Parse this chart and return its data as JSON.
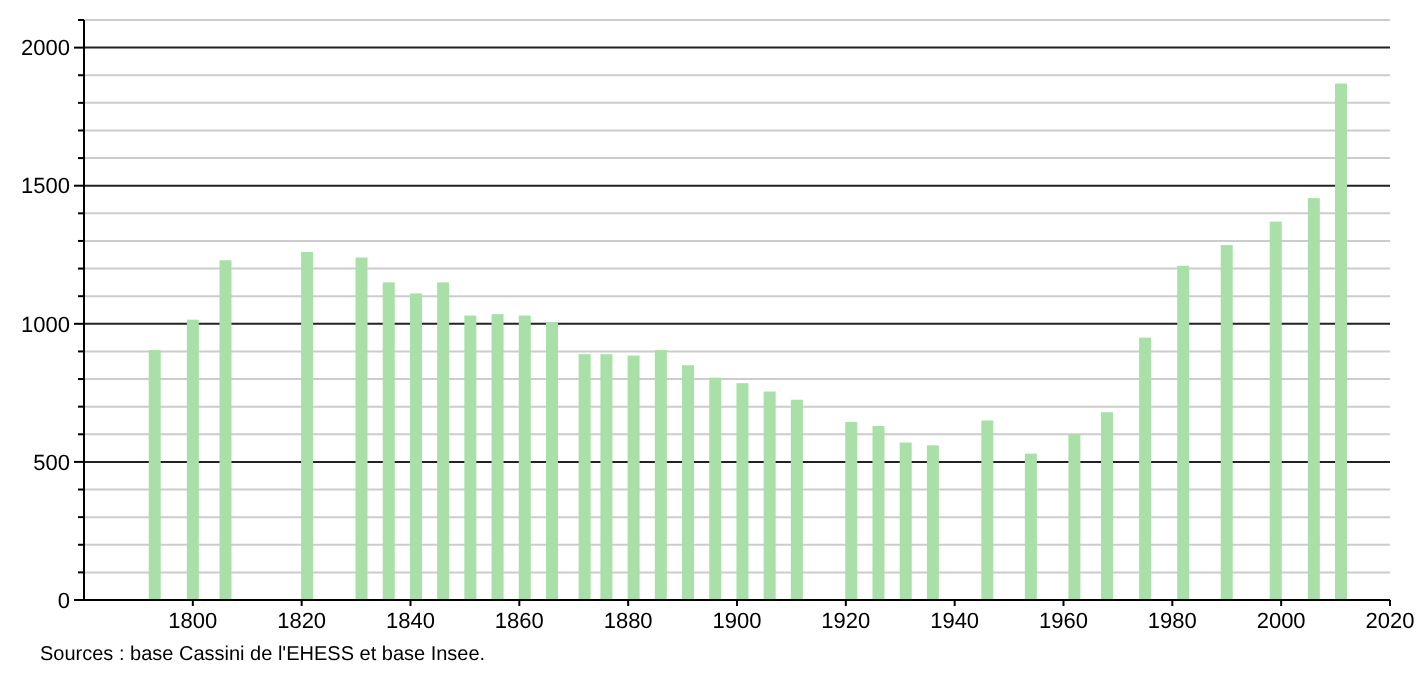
{
  "chart_data": {
    "type": "bar",
    "x": [
      1793,
      1800,
      1806,
      1821,
      1831,
      1836,
      1841,
      1846,
      1851,
      1856,
      1861,
      1866,
      1872,
      1876,
      1881,
      1886,
      1891,
      1896,
      1901,
      1906,
      1911,
      1921,
      1926,
      1931,
      1936,
      1946,
      1954,
      1962,
      1968,
      1975,
      1982,
      1990,
      1999,
      2006,
      2011
    ],
    "values": [
      905,
      1015,
      1230,
      1260,
      1240,
      1150,
      1110,
      1150,
      1030,
      1035,
      1030,
      1005,
      890,
      890,
      885,
      905,
      850,
      805,
      785,
      755,
      725,
      645,
      630,
      570,
      560,
      650,
      530,
      600,
      680,
      950,
      1210,
      1285,
      1370,
      1455,
      1870
    ],
    "color": "#a8e0a8",
    "xlim": [
      1780,
      2020
    ],
    "xticks": [
      1800,
      1820,
      1840,
      1860,
      1880,
      1900,
      1920,
      1940,
      1960,
      1980,
      2000,
      2020
    ],
    "ylim": [
      0,
      2100
    ],
    "yticks": [
      0,
      {
        "value": 100,
        "label": null
      },
      {
        "value": 200,
        "label": null
      },
      {
        "value": 300,
        "label": null
      },
      {
        "value": 400,
        "label": null
      },
      500,
      {
        "value": 600,
        "label": null
      },
      {
        "value": 700,
        "label": null
      },
      {
        "value": 800,
        "label": null
      },
      {
        "value": 900,
        "label": null
      },
      1000,
      {
        "value": 1100,
        "label": null
      },
      {
        "value": 1200,
        "label": null
      },
      {
        "value": 1300,
        "label": null
      },
      {
        "value": 1400,
        "label": null
      },
      1500,
      {
        "value": 1600,
        "label": null
      },
      {
        "value": 1700,
        "label": null
      },
      {
        "value": 1800,
        "label": null
      },
      {
        "value": 1900,
        "label": null
      },
      2000,
      {
        "value": 2100,
        "label": null
      }
    ],
    "grid": "y",
    "annotations": [
      "Sources : base Cassini de l'EHESS et base Insee."
    ]
  }
}
